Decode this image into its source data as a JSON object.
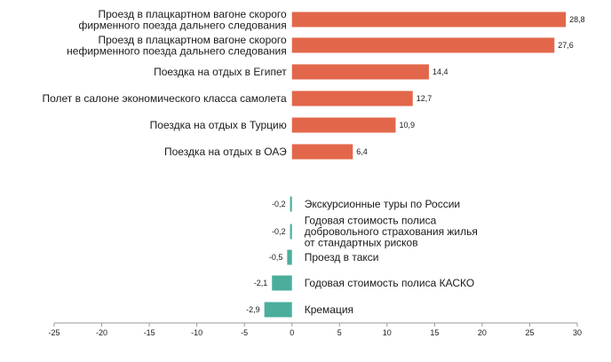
{
  "chart_data": {
    "type": "bar",
    "orientation": "horizontal",
    "categories": [
      [
        "Проезд в плацкартном вагоне скорого",
        "фирменного поезда дальнего следования"
      ],
      [
        "Проезд в плацкартном вагоне скорого",
        "нефирменного поезда дальнего следования"
      ],
      [
        "Поездка на отдых в Египет"
      ],
      [
        "Полет в салоне экономического класса самолета"
      ],
      [
        "Поездка на отдых в Турцию"
      ],
      [
        "Поездка на отдых в ОАЭ"
      ],
      [
        "Экскурсионные туры по России"
      ],
      [
        "Годовая стоимость полиса",
        "добровольного страхования жилья",
        "от стандартных рисков"
      ],
      [
        "Проезд в такси"
      ],
      [
        "Годовая стоимость полиса КАСКО"
      ],
      [
        "Кремация"
      ]
    ],
    "values": [
      28.8,
      27.6,
      14.4,
      12.7,
      10.9,
      6.4,
      -0.2,
      -0.2,
      -0.5,
      -2.1,
      -2.9
    ],
    "value_labels": [
      "28,8",
      "27,6",
      "14,4",
      "12,7",
      "10,9",
      "6,4",
      "-0,2",
      "-0,2",
      "-0,5",
      "-2,1",
      "-2,9"
    ],
    "xlim": [
      -25,
      30
    ],
    "xticks": [
      -25,
      -20,
      -15,
      -10,
      -5,
      0,
      5,
      10,
      15,
      20,
      25,
      30
    ],
    "xtick_labels": [
      "-25",
      "-20",
      "-15",
      "-10",
      "-5",
      "0",
      "5",
      "10",
      "15",
      "20",
      "25",
      "30"
    ],
    "colors": {
      "positive": "#e2674a",
      "negative": "#4aae9b",
      "axis": "#9a9a9a"
    },
    "title": "",
    "xlabel": "",
    "ylabel": ""
  }
}
